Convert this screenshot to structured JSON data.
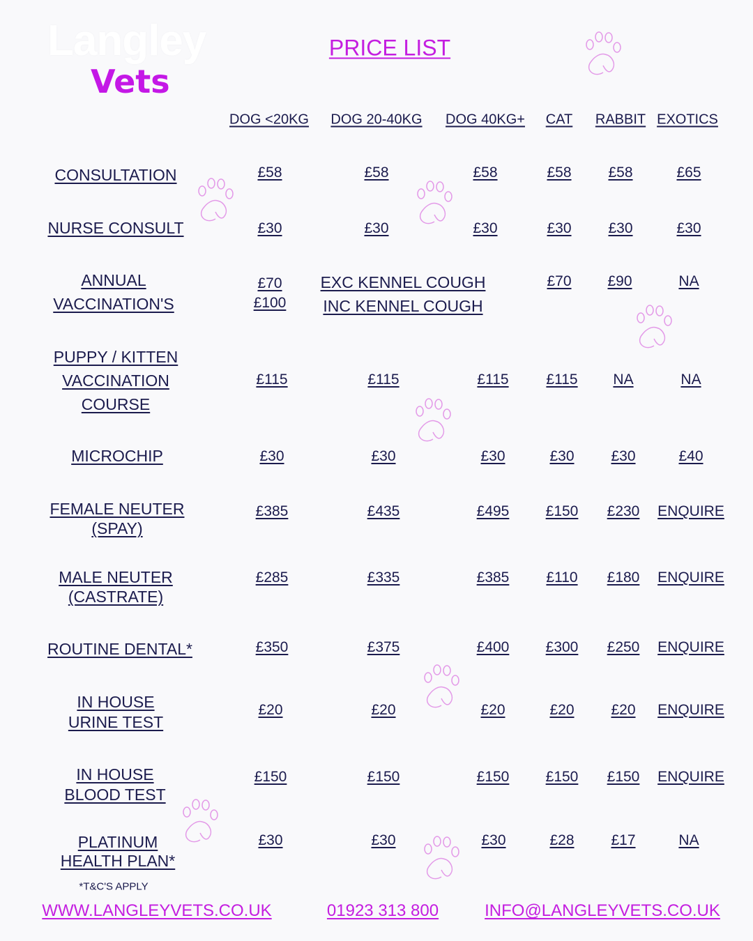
{
  "logo": {
    "line1": "Langley",
    "line2": "Vets"
  },
  "title": "PRICE LIST",
  "columns": [
    "DOG <20KG",
    "DOG 20-40KG",
    "DOG 40KG+",
    "CAT",
    "RABBIT",
    "EXOTICS"
  ],
  "rows": [
    {
      "label": [
        "CONSULTATION"
      ],
      "values": [
        "£58",
        "£58",
        "£58",
        "£58",
        "£58",
        "£65"
      ]
    },
    {
      "label": [
        "NURSE CONSULT"
      ],
      "values": [
        "£30",
        "£30",
        "£30",
        "£30",
        "£30",
        "£30"
      ]
    },
    {
      "label": [
        "ANNUAL",
        "VACCINATION'S"
      ],
      "values": [
        "£70",
        "£100",
        "EXC KENNEL COUGH",
        "INC KENNEL COUGH",
        "£70",
        "£90",
        "NA"
      ]
    },
    {
      "label": [
        "PUPPY / KITTEN",
        "VACCINATION",
        "COURSE"
      ],
      "values": [
        "£115",
        "£115",
        "£115",
        "£115",
        "NA",
        "NA"
      ]
    },
    {
      "label": [
        "MICROCHIP"
      ],
      "values": [
        "£30",
        "£30",
        "£30",
        "£30",
        "£30",
        "£40"
      ]
    },
    {
      "label": [
        "FEMALE NEUTER",
        "(SPAY)"
      ],
      "values": [
        "£385",
        "£435",
        "£495",
        "£150",
        "£230",
        "ENQUIRE"
      ]
    },
    {
      "label": [
        "MALE NEUTER",
        "(CASTRATE)"
      ],
      "values": [
        "£285",
        "£335",
        "£385",
        "£110",
        "£180",
        "ENQUIRE"
      ]
    },
    {
      "label": [
        "ROUTINE DENTAL*"
      ],
      "values": [
        "£350",
        "£375",
        "£400",
        "£300",
        "£250",
        "ENQUIRE"
      ]
    },
    {
      "label": [
        "IN HOUSE",
        "URINE TEST"
      ],
      "values": [
        "£20",
        "£20",
        "£20",
        "£20",
        "£20",
        "ENQUIRE"
      ]
    },
    {
      "label": [
        "IN HOUSE",
        "BLOOD TEST"
      ],
      "values": [
        "£150",
        "£150",
        "£150",
        "£150",
        "£150",
        "ENQUIRE"
      ]
    },
    {
      "label": [
        "PLATINUM",
        "HEALTH PLAN*"
      ],
      "values": [
        "£30",
        "£30",
        "£30",
        "£28",
        "£17",
        "NA"
      ]
    }
  ],
  "terms": "*T&C'S APPLY",
  "footer": {
    "website": "WWW.LANGLEYVETS.CO.UK",
    "phone": "01923 313 800",
    "email": "INFO@LANGLEYVETS.CO.UK"
  },
  "colors": {
    "accent": "#c41ee0",
    "text": "#1b1b4d",
    "paw": "#e39ae8",
    "background": "#f9f9fb"
  },
  "decorations": {
    "icon": "paw-print-icon"
  }
}
